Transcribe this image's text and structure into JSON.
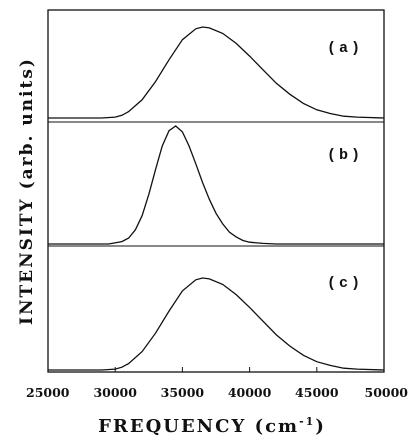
{
  "chart_data": {
    "type": "line",
    "xlabel": "FREQUENCY",
    "xlabel_unit": "(cm",
    "xlabel_unit_exp": "-1",
    "xlabel_unit_close": ")",
    "ylabel": "INTENSITY (arb. units)",
    "xlim": [
      25000,
      50000
    ],
    "x_ticks": [
      "25000",
      "30000",
      "35000",
      "40000",
      "45000",
      "50000"
    ],
    "grid": false,
    "panels": [
      {
        "label": "(a)",
        "series": [
          {
            "x": [
              25000,
              29000,
              30000,
              30500,
              31000,
              32000,
              33000,
              34000,
              35000,
              36000,
              36500,
              37000,
              38000,
              39000,
              40000,
              41000,
              42000,
              43000,
              44000,
              45000,
              46000,
              47000,
              48000,
              50000
            ],
            "y": [
              0,
              0,
              0.01,
              0.03,
              0.07,
              0.2,
              0.4,
              0.64,
              0.86,
              0.98,
              1.0,
              0.99,
              0.93,
              0.82,
              0.68,
              0.53,
              0.38,
              0.26,
              0.16,
              0.09,
              0.05,
              0.02,
              0.01,
              0
            ]
          }
        ]
      },
      {
        "label": "(b)",
        "series": [
          {
            "x": [
              25000,
              29500,
              30500,
              31000,
              31500,
              32000,
              32500,
              33000,
              33500,
              34000,
              34500,
              35000,
              35500,
              36000,
              36500,
              37000,
              37500,
              38000,
              38500,
              39000,
              39500,
              40000,
              41000,
              42000,
              50000
            ],
            "y": [
              0,
              0,
              0.02,
              0.05,
              0.12,
              0.24,
              0.42,
              0.63,
              0.83,
              0.96,
              1.0,
              0.95,
              0.83,
              0.68,
              0.52,
              0.38,
              0.26,
              0.17,
              0.1,
              0.06,
              0.03,
              0.015,
              0.005,
              0,
              0
            ]
          }
        ]
      },
      {
        "label": "(c)",
        "series": [
          {
            "x": [
              25000,
              29000,
              30000,
              30500,
              31000,
              32000,
              33000,
              34000,
              35000,
              36000,
              36500,
              37000,
              38000,
              39000,
              40000,
              41000,
              42000,
              43000,
              44000,
              45000,
              46000,
              47000,
              48000,
              50000
            ],
            "y": [
              0,
              0,
              0.01,
              0.03,
              0.07,
              0.2,
              0.4,
              0.64,
              0.86,
              0.98,
              1.0,
              0.99,
              0.93,
              0.82,
              0.68,
              0.53,
              0.38,
              0.26,
              0.16,
              0.09,
              0.05,
              0.02,
              0.01,
              0
            ]
          }
        ]
      }
    ]
  }
}
